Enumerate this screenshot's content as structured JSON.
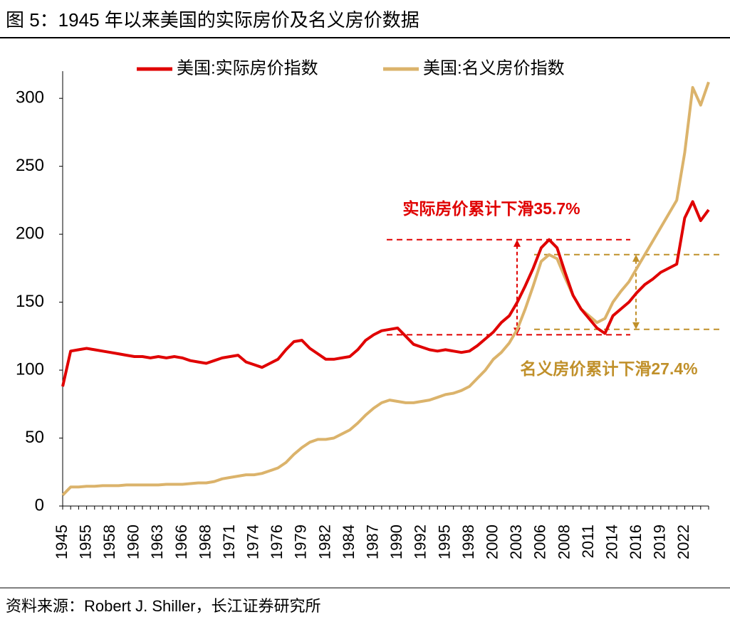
{
  "chart_data": {
    "type": "line",
    "title": "图 5：1945 年以来美国的实际房价及名义房价数据",
    "source": "资料来源：Robert J. Shiller，长江证券研究所",
    "categories": [
      "1945",
      null,
      null,
      "1955",
      null,
      null,
      "1958",
      null,
      null,
      "1960",
      null,
      null,
      "1963",
      null,
      null,
      "1966",
      null,
      null,
      "1968",
      null,
      null,
      "1971",
      null,
      null,
      "1974",
      null,
      null,
      "1976",
      null,
      null,
      "1979",
      null,
      null,
      "1982",
      null,
      null,
      "1984",
      null,
      null,
      "1987",
      null,
      null,
      "1990",
      null,
      null,
      "1992",
      null,
      null,
      "1995",
      null,
      null,
      "1998",
      null,
      null,
      "2000",
      null,
      null,
      "2003",
      null,
      null,
      "2006",
      null,
      null,
      "2008",
      null,
      null,
      "2011",
      null,
      null,
      "2014",
      null,
      null,
      "2016",
      null,
      null,
      "2019",
      null,
      null,
      "2022",
      null,
      null,
      null
    ],
    "series": [
      {
        "name": "美国:实际房价指数",
        "color": "#e00000",
        "values": [
          88,
          114,
          115,
          116,
          115,
          114,
          113,
          112,
          111,
          110,
          110,
          109,
          110,
          109,
          110,
          109,
          107,
          106,
          105,
          107,
          109,
          110,
          111,
          106,
          104,
          102,
          105,
          108,
          115,
          121,
          122,
          116,
          112,
          108,
          108,
          109,
          110,
          115,
          122,
          126,
          129,
          130,
          131,
          125,
          119,
          117,
          115,
          114,
          115,
          114,
          113,
          114,
          118,
          123,
          128,
          135,
          140,
          150,
          162,
          175,
          190,
          196,
          190,
          172,
          155,
          145,
          138,
          131,
          127,
          140,
          145,
          150,
          157,
          163,
          167,
          172,
          175,
          178,
          212,
          224,
          210,
          218
        ]
      },
      {
        "name": "美国:名义房价指数",
        "color": "#dbb36b",
        "values": [
          8,
          14,
          14,
          14.5,
          14.5,
          15,
          15,
          15,
          15.5,
          15.5,
          15.5,
          15.5,
          15.5,
          16,
          16,
          16,
          16.5,
          17,
          17,
          18,
          20,
          21,
          22,
          23,
          23,
          24,
          26,
          28,
          32,
          38,
          43,
          47,
          49,
          49,
          50,
          53,
          56,
          61,
          67,
          72,
          76,
          78,
          77,
          76,
          76,
          77,
          78,
          80,
          82,
          83,
          85,
          88,
          94,
          100,
          108,
          113,
          120,
          130,
          145,
          162,
          180,
          185,
          182,
          168,
          155,
          145,
          140,
          135,
          138,
          150,
          158,
          165,
          175,
          185,
          195,
          205,
          215,
          225,
          260,
          308,
          295,
          312
        ]
      }
    ],
    "ylim": [
      0,
      320
    ],
    "yticks": [
      0,
      50,
      100,
      150,
      200,
      250,
      300
    ],
    "legend": "top",
    "annotations": [
      {
        "text": "实际房价累计下滑35.7%",
        "color": "#e00000",
        "from": 196,
        "to": 126
      },
      {
        "text": "名义房价累计下滑27.4%",
        "color": "#c0902a",
        "from": 185,
        "to": 130
      }
    ]
  }
}
